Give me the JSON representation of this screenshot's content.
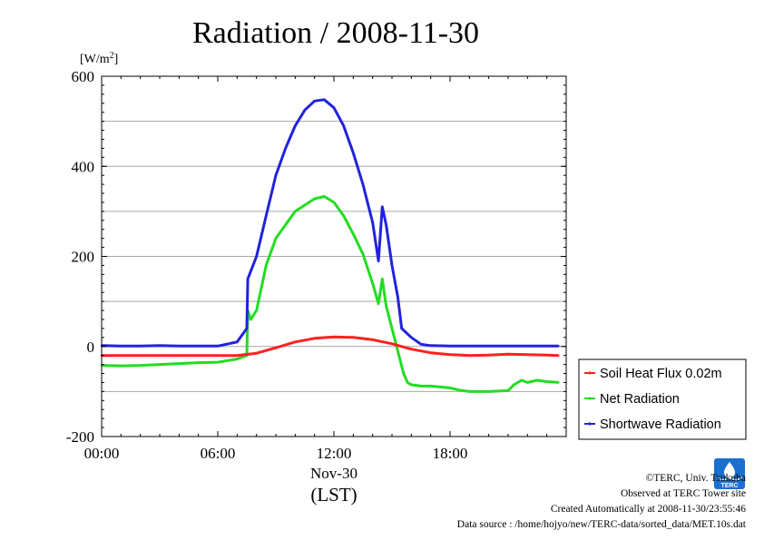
{
  "chart_data": {
    "type": "line",
    "title": "Radiation / 2008-11-30",
    "ylabel_parts": [
      "[W/m",
      "2",
      "]"
    ],
    "ylim": [
      -200,
      600
    ],
    "yticks": [
      600,
      400,
      200,
      0,
      -200
    ],
    "ytick_labels": [
      "600",
      "400",
      "200",
      "0",
      "-200"
    ],
    "minor_gridlines": [
      500,
      300,
      100,
      -100
    ],
    "xlim": [
      0,
      24
    ],
    "xticks": [
      0,
      6,
      12,
      18
    ],
    "xtick_labels": [
      "00:00",
      "06:00",
      "12:00",
      "18:00"
    ],
    "xlabel_date": "Nov-30",
    "xlabel_unit": "(LST)",
    "legend_position": "right",
    "series": [
      {
        "name": "Soil Heat Flux 0.02m",
        "color": "#ff2020",
        "x": [
          0,
          2,
          4,
          6,
          7,
          8,
          9,
          10,
          11,
          12,
          13,
          14,
          15,
          15.5,
          16,
          17,
          18,
          19,
          20,
          21,
          22,
          23,
          23.6
        ],
        "y": [
          -20,
          -20,
          -20,
          -20,
          -20,
          -15,
          -3,
          10,
          18,
          21,
          20,
          15,
          6,
          0,
          -6,
          -14,
          -18,
          -20,
          -19,
          -17,
          -18,
          -19,
          -20
        ]
      },
      {
        "name": "Net Radiation",
        "color": "#22dd22",
        "x": [
          0,
          1,
          2,
          3,
          4,
          5,
          6,
          7,
          7.5,
          7.55,
          7.7,
          8,
          8.5,
          9,
          10,
          11,
          11.5,
          12,
          12.5,
          13,
          13.5,
          14,
          14.3,
          14.5,
          14.7,
          15,
          15.3,
          15.6,
          15.8,
          16,
          16.5,
          17,
          17.5,
          18,
          18.5,
          19,
          19.5,
          20,
          20.5,
          21,
          21.3,
          21.7,
          22,
          22.5,
          23,
          23.6
        ],
        "y": [
          -42,
          -43,
          -42,
          -40,
          -38,
          -36,
          -35,
          -28,
          -20,
          80,
          60,
          80,
          180,
          240,
          300,
          328,
          333,
          320,
          290,
          250,
          205,
          140,
          95,
          150,
          90,
          40,
          -10,
          -60,
          -80,
          -85,
          -88,
          -88,
          -90,
          -92,
          -97,
          -100,
          -100,
          -100,
          -99,
          -98,
          -85,
          -75,
          -80,
          -75,
          -78,
          -80
        ]
      },
      {
        "name": "Shortwave Radiation",
        "color": "#2222dd",
        "x": [
          0,
          1,
          2,
          3,
          4,
          5,
          6,
          7,
          7.5,
          7.55,
          8,
          8.5,
          9,
          9.5,
          10,
          10.5,
          11,
          11.5,
          12,
          12.5,
          13,
          13.5,
          14,
          14.3,
          14.5,
          14.7,
          15,
          15.3,
          15.5,
          16,
          16.5,
          17,
          18,
          19,
          20,
          21,
          22,
          23,
          23.6
        ],
        "y": [
          2,
          1,
          1,
          2,
          1,
          1,
          1,
          10,
          40,
          150,
          200,
          290,
          380,
          440,
          490,
          525,
          545,
          548,
          530,
          490,
          430,
          360,
          275,
          190,
          310,
          270,
          180,
          110,
          40,
          20,
          5,
          2,
          1,
          1,
          1,
          1,
          1,
          1,
          1
        ]
      }
    ]
  },
  "credits": {
    "copyright": "©TERC, Univ. Tsukuba",
    "observed": "Observed at TERC Tower site",
    "created": "Created Automatically at 2008-11-30/23:55:46",
    "source": "Data source : /home/hojyo/new/TERC-data/sorted_data/MET.10s.dat"
  },
  "logo": {
    "text": "TERC",
    "color": "#1a6fcf"
  }
}
